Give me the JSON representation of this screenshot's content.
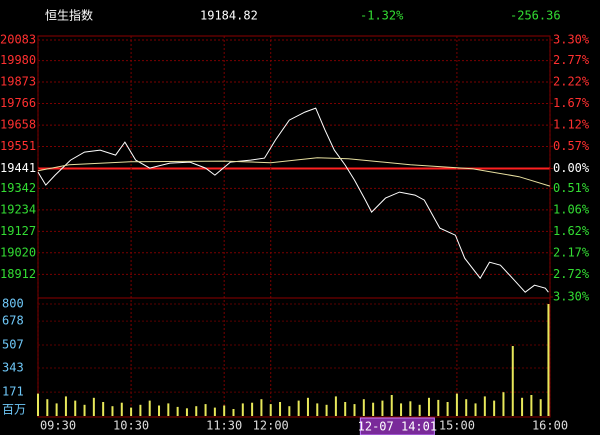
{
  "header": {
    "name": "恒生指数",
    "price": "19184.82",
    "change_pct": "-1.32%",
    "change": "-256.36"
  },
  "chart_data": [
    {
      "type": "line",
      "xlim": [
        0,
        330
      ],
      "xticks": [
        {
          "value": 0,
          "label": "09:30"
        },
        {
          "value": 60,
          "label": "10:30"
        },
        {
          "value": 120,
          "label": "11:30"
        },
        {
          "value": 150,
          "label": "12:00"
        },
        {
          "value": 270,
          "label": "15:00"
        },
        {
          "value": 330,
          "label": "16:00"
        }
      ],
      "cursor": {
        "x": 211,
        "label": "12-07 14:01"
      },
      "ylim": [
        18799,
        20083
      ],
      "yticks": [
        20083,
        19980,
        19873,
        19766,
        19658,
        19551,
        19441,
        19342,
        19234,
        19127,
        19020,
        18912
      ],
      "y2lim": [
        -3.3,
        3.3
      ],
      "y2ticks": [
        {
          "value": 3.3,
          "label": "3.30%"
        },
        {
          "value": 2.77,
          "label": "2.77%"
        },
        {
          "value": 2.22,
          "label": "2.22%"
        },
        {
          "value": 1.67,
          "label": "1.67%"
        },
        {
          "value": 1.12,
          "label": "1.12%"
        },
        {
          "value": 0.57,
          "label": "0.57%"
        },
        {
          "value": 0,
          "label": "0.00%"
        },
        {
          "value": -0.51,
          "label": "0.51%"
        },
        {
          "value": -1.06,
          "label": "1.06%"
        },
        {
          "value": -1.62,
          "label": "1.62%"
        },
        {
          "value": -2.17,
          "label": "2.17%"
        },
        {
          "value": -2.72,
          "label": "2.72%"
        },
        {
          "value": -3.3,
          "label": "3.30%"
        }
      ],
      "grid": true,
      "series": [
        {
          "name": "price",
          "color": "#ffffff",
          "x": [
            0,
            5,
            11,
            21,
            30,
            40,
            50,
            56,
            63,
            72,
            85,
            98,
            108,
            114,
            124,
            137,
            146,
            153,
            162,
            172,
            179,
            185,
            191,
            198,
            204,
            211,
            215,
            224,
            233,
            243,
            249,
            259,
            269,
            275,
            285,
            291,
            298,
            307,
            314,
            320,
            327,
            329
          ],
          "values": [
            19423,
            19358,
            19408,
            19483,
            19523,
            19533,
            19508,
            19573,
            19483,
            19443,
            19468,
            19473,
            19443,
            19408,
            19473,
            19483,
            19493,
            19583,
            19683,
            19723,
            19743,
            19633,
            19533,
            19458,
            19383,
            19283,
            19223,
            19293,
            19323,
            19308,
            19283,
            19143,
            19108,
            18993,
            18893,
            18973,
            18958,
            18883,
            18823,
            18858,
            18843,
            18823
          ]
        },
        {
          "name": "average",
          "color": "#e8e0a0",
          "x": [
            0,
            20,
            60,
            120,
            150,
            180,
            200,
            240,
            280,
            310,
            330
          ],
          "values": [
            19430,
            19460,
            19475,
            19478,
            19470,
            19495,
            19490,
            19460,
            19440,
            19400,
            19353
          ]
        }
      ]
    },
    {
      "type": "bar",
      "unit": "百万",
      "color": "#e8e85a",
      "ylim": [
        0,
        843
      ],
      "yticks": [
        800,
        678,
        507,
        343,
        171
      ],
      "x": [
        0,
        6,
        12,
        18,
        24,
        30,
        36,
        42,
        48,
        54,
        60,
        66,
        72,
        78,
        84,
        90,
        96,
        102,
        108,
        114,
        120,
        126,
        132,
        138,
        144,
        150,
        156,
        162,
        168,
        174,
        180,
        186,
        192,
        198,
        204,
        210,
        216,
        222,
        228,
        234,
        240,
        246,
        252,
        258,
        264,
        270,
        276,
        282,
        288,
        294,
        300,
        306,
        312,
        318,
        324,
        329
      ],
      "values": [
        160,
        120,
        90,
        140,
        110,
        80,
        130,
        100,
        70,
        95,
        60,
        80,
        110,
        75,
        90,
        65,
        55,
        70,
        85,
        60,
        75,
        50,
        90,
        95,
        120,
        85,
        100,
        70,
        110,
        130,
        90,
        80,
        140,
        100,
        85,
        120,
        95,
        110,
        150,
        90,
        105,
        80,
        130,
        115,
        100,
        160,
        120,
        90,
        140,
        110,
        170,
        500,
        130,
        150,
        120,
        800
      ]
    }
  ]
}
